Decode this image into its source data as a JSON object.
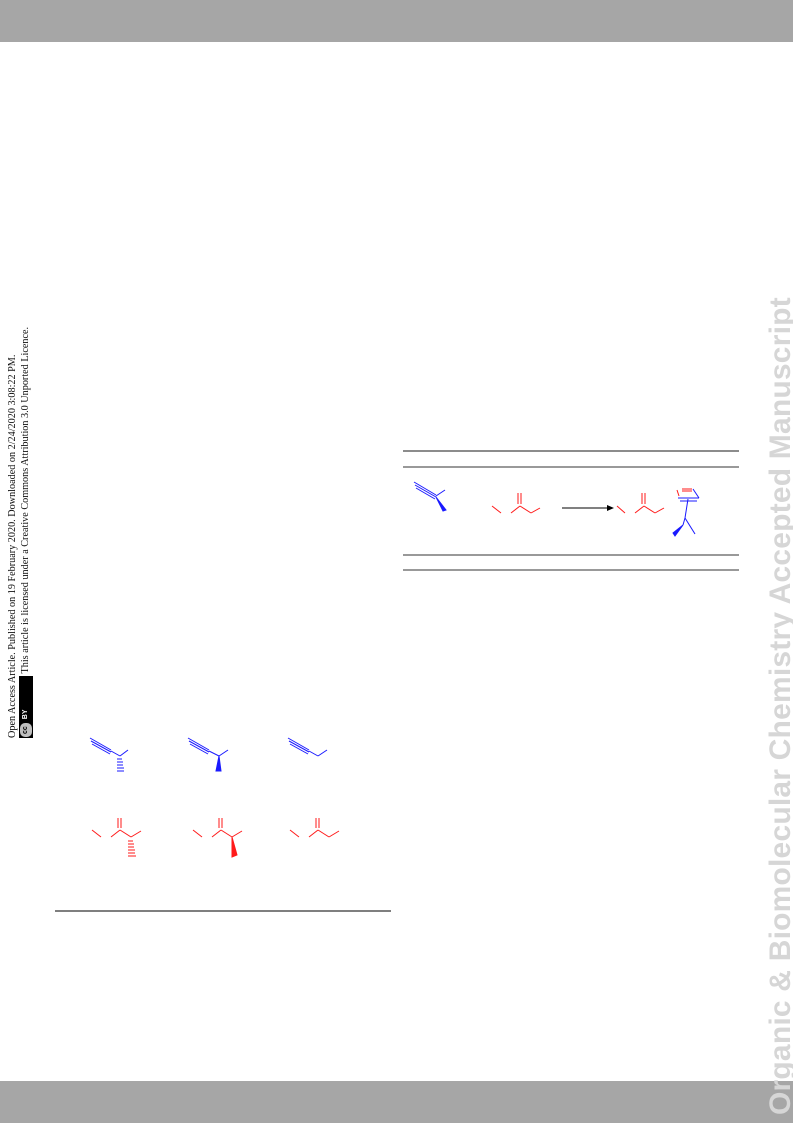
{
  "header_bar": {
    "color": "#a6a6a6"
  },
  "footer_bar": {
    "color": "#a6a6a6"
  },
  "watermark": {
    "text": "Organic & Biomolecular Chemistry Accepted Manuscript",
    "color": "#d6d6d6"
  },
  "access_notice": {
    "line1": "Open Access Article. Published on 19 February 2020. Downloaded on 2/24/2020 3:08:22 PM.",
    "line2": "This article is licensed under a Creative Commons Attribution 3.0 Unported Licence.",
    "badge_cc": "cc",
    "badge_by": "BY"
  },
  "colors": {
    "alkyne": "#1a1aff",
    "ketone": "#ff1a1a",
    "rule": "#333333"
  }
}
